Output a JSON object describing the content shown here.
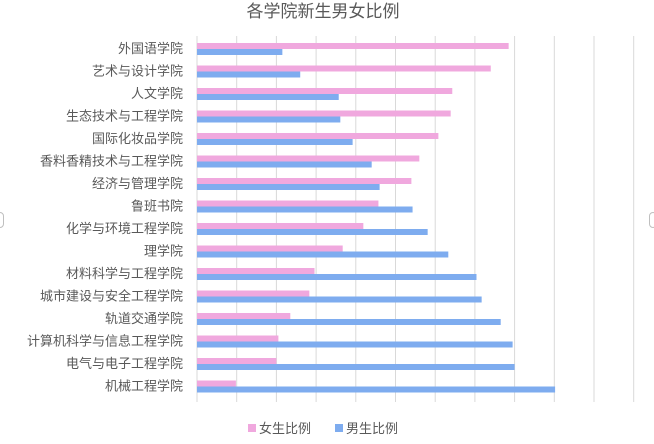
{
  "chart_data": {
    "type": "bar",
    "orientation": "horizontal",
    "title": "各学院新生男女比例",
    "categories": [
      "外国语学院",
      "艺术与设计学院",
      "人文学院",
      "生态技术与工程学院",
      "国际化妆品学院",
      "香料香精技术与工程学院",
      "经济与管理学院",
      "鲁班书院",
      "化学与环境工程学院",
      "理学院",
      "材料科学与工程学院",
      "城市建设与安全工程学院",
      "轨道交通学院",
      "计算机科学与信息工程学院",
      "电气与电子工程学院",
      "机械工程学院"
    ],
    "series": [
      {
        "name": "女生比例",
        "color": "#f0a8de",
        "values": [
          0.785,
          0.74,
          0.643,
          0.639,
          0.608,
          0.56,
          0.54,
          0.457,
          0.419,
          0.367,
          0.296,
          0.283,
          0.235,
          0.205,
          0.2,
          0.098
        ]
      },
      {
        "name": "男生比例",
        "color": "#7eacef",
        "values": [
          0.215,
          0.26,
          0.357,
          0.361,
          0.392,
          0.44,
          0.46,
          0.543,
          0.581,
          0.633,
          0.704,
          0.717,
          0.765,
          0.795,
          0.8,
          0.902
        ]
      }
    ],
    "xlim": [
      0,
      1
    ],
    "grid": true,
    "legend": "bottom-center"
  }
}
